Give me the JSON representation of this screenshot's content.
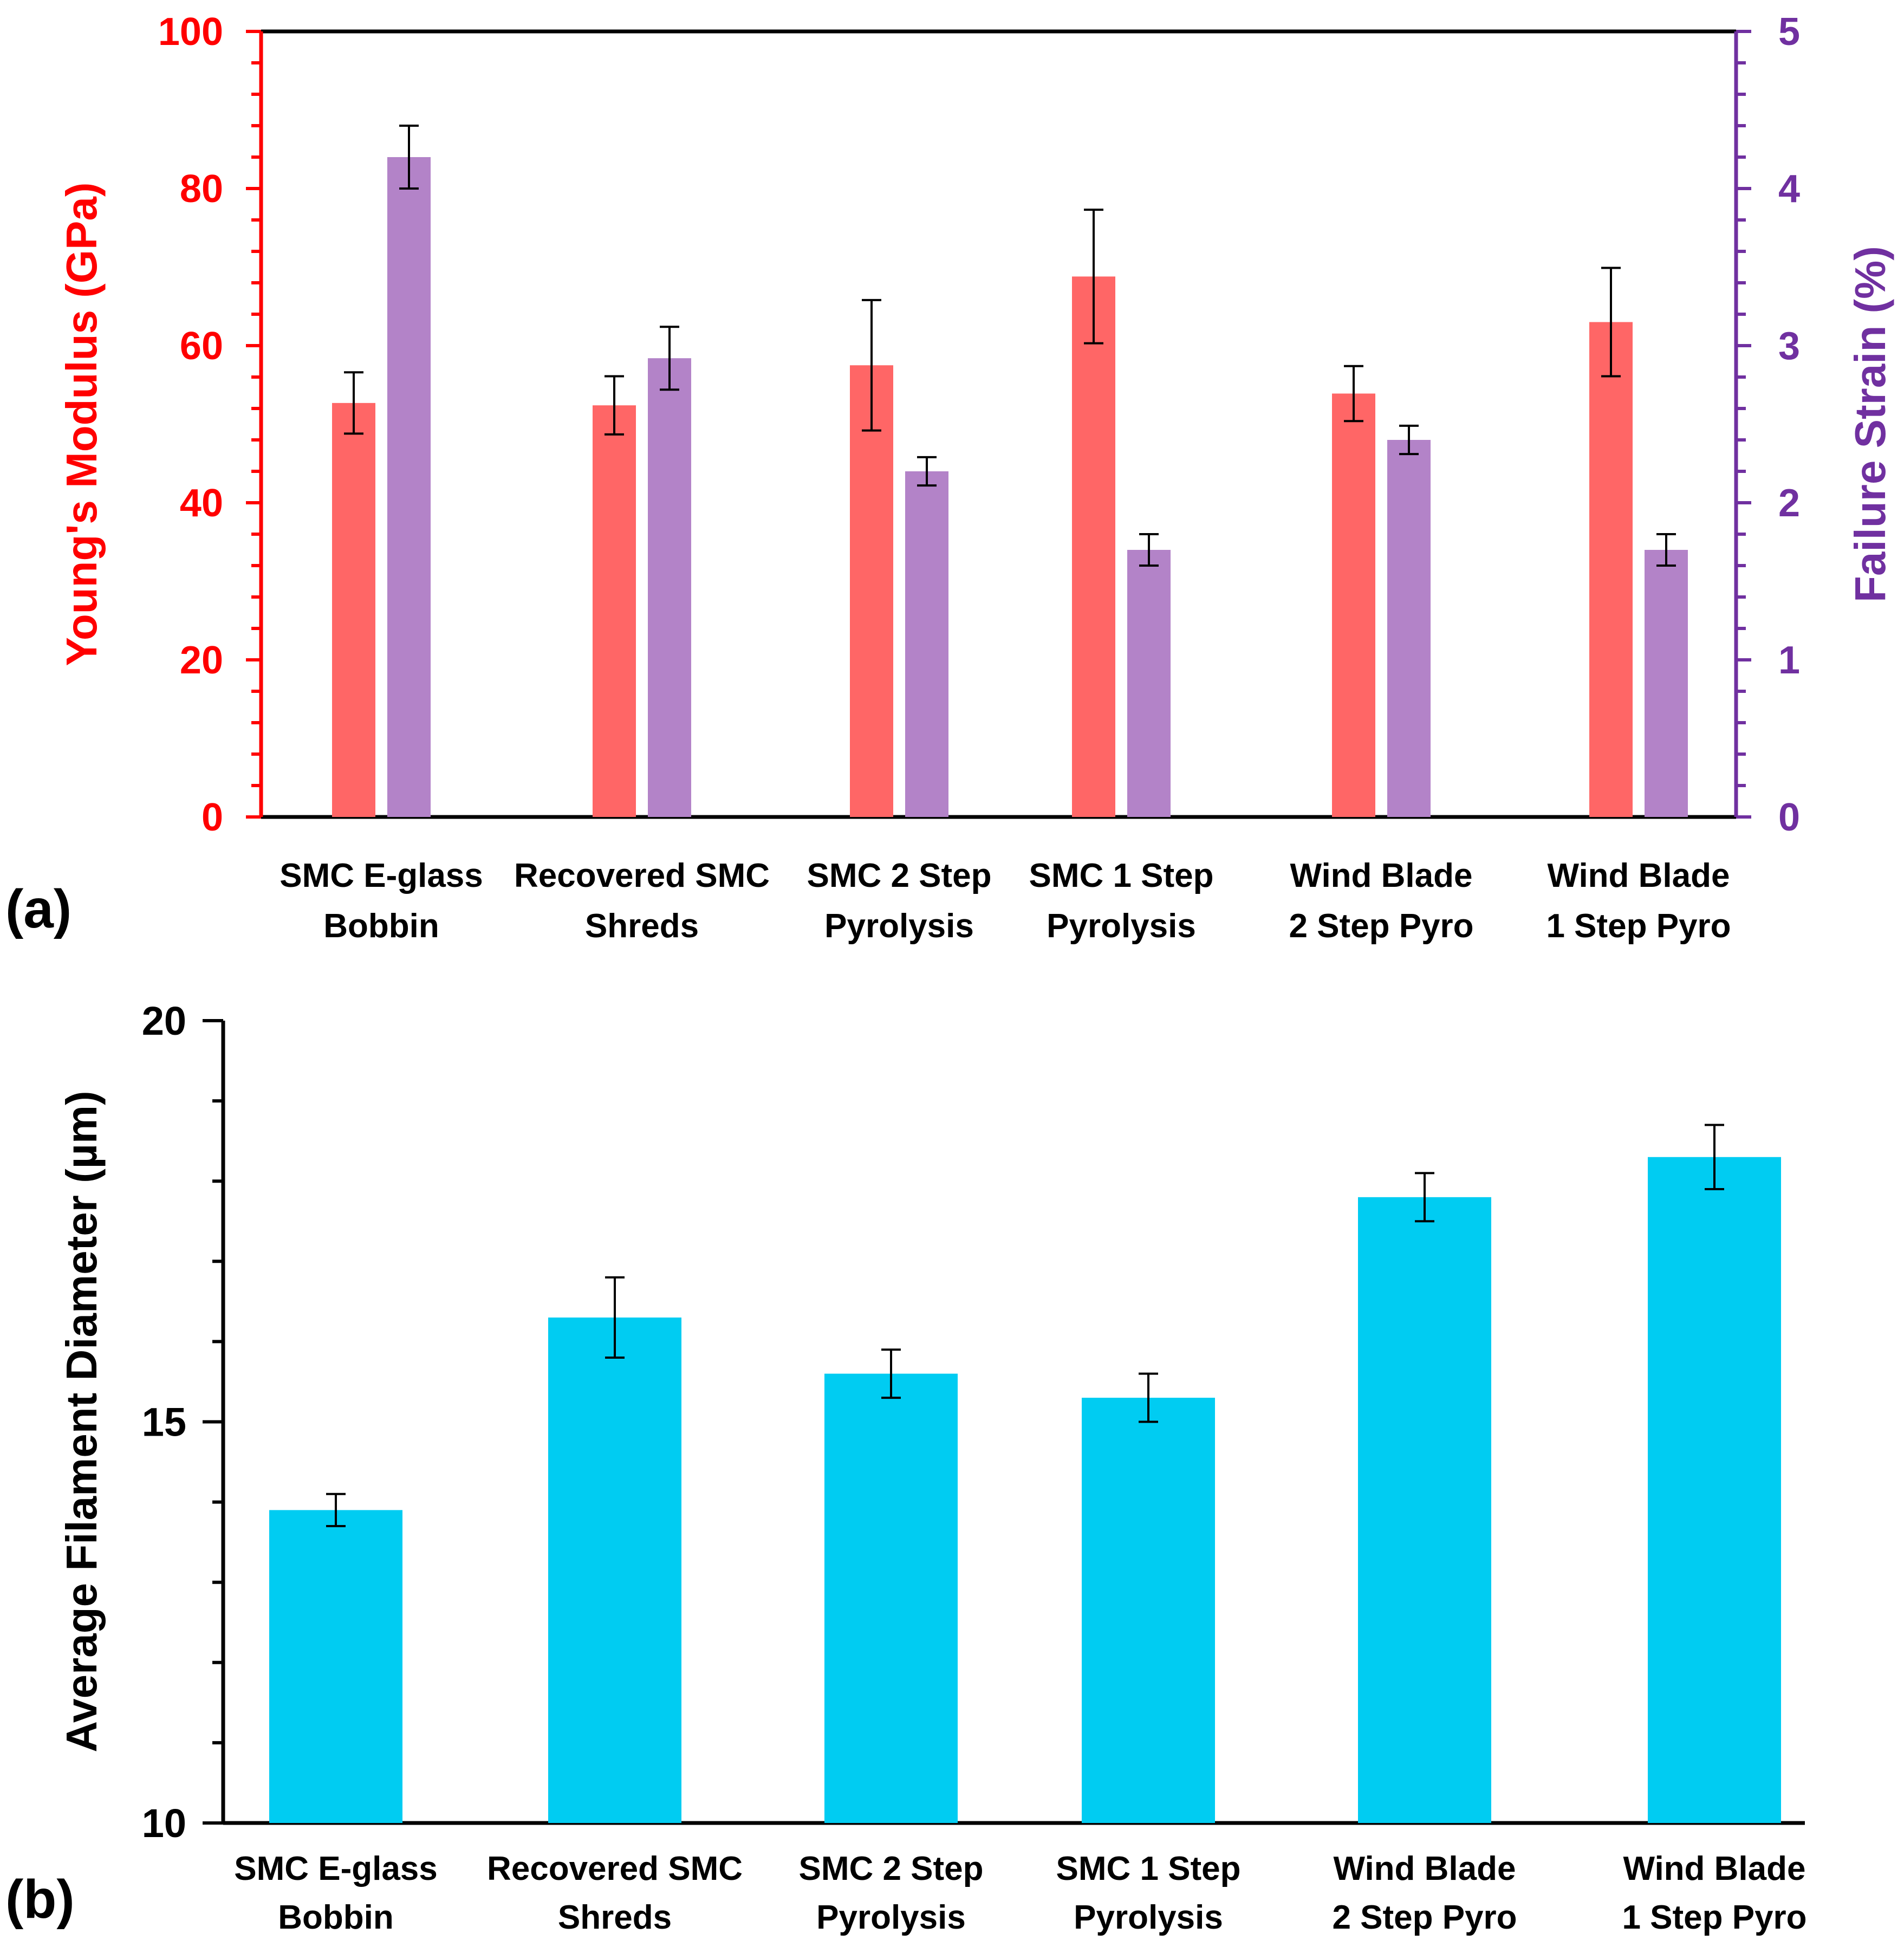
{
  "chart_data": [
    {
      "type": "bar",
      "panel_label": "(a)",
      "categories": [
        [
          "SMC E-glass",
          "Bobbin"
        ],
        [
          "Recovered SMC",
          "Shreds"
        ],
        [
          "SMC 2 Step",
          "Pyrolysis"
        ],
        [
          "SMC 1 Step",
          "Pyrolysis"
        ],
        [
          "Wind Blade",
          "2 Step Pyro"
        ],
        [
          "Wind Blade",
          "1 Step Pyro"
        ]
      ],
      "ylabel": "Young's Modulus (GPa)",
      "ylim": [
        0,
        100
      ],
      "yticks": [
        "0",
        "20",
        "40",
        "60",
        "80",
        "100"
      ],
      "y2label": "Failure Strain (%)",
      "y2lim": [
        0,
        5
      ],
      "y2ticks": [
        "0",
        "1",
        "2",
        "3",
        "4",
        "5"
      ],
      "series": [
        {
          "name": "Young's Modulus",
          "axis": "left",
          "color": "#ff6666",
          "values": [
            52.7,
            52.4,
            57.5,
            68.8,
            53.9,
            63.0
          ],
          "errors": [
            3.9,
            3.7,
            8.3,
            8.5,
            3.5,
            6.9
          ]
        },
        {
          "name": "Failure Strain",
          "axis": "right",
          "color": "#b383c8",
          "values": [
            4.2,
            2.92,
            2.2,
            1.7,
            2.4,
            1.7
          ],
          "errors": [
            0.2,
            0.2,
            0.09,
            0.1,
            0.09,
            0.1
          ]
        }
      ],
      "colors": {
        "left_axis": "#ff0000",
        "right_axis": "#7030a0"
      }
    },
    {
      "type": "bar",
      "panel_label": "(b)",
      "categories": [
        [
          "SMC E-glass",
          "Bobbin"
        ],
        [
          "Recovered SMC",
          "Shreds"
        ],
        [
          "SMC 2 Step",
          "Pyrolysis"
        ],
        [
          "SMC 1 Step",
          "Pyrolysis"
        ],
        [
          "Wind Blade",
          "2 Step Pyro"
        ],
        [
          "Wind Blade",
          "1 Step Pyro"
        ]
      ],
      "ylabel": "Average Filament Diameter (µm)",
      "ylim": [
        10,
        20
      ],
      "yticks": [
        "10",
        "15",
        "20"
      ],
      "series": [
        {
          "name": "Average Filament Diameter",
          "color": "#00ccf2",
          "values": [
            13.9,
            16.3,
            15.6,
            15.3,
            17.8,
            18.3
          ],
          "errors": [
            0.2,
            0.5,
            0.3,
            0.3,
            0.3,
            0.4
          ]
        }
      ],
      "colors": {
        "axis": "#000000"
      }
    }
  ]
}
